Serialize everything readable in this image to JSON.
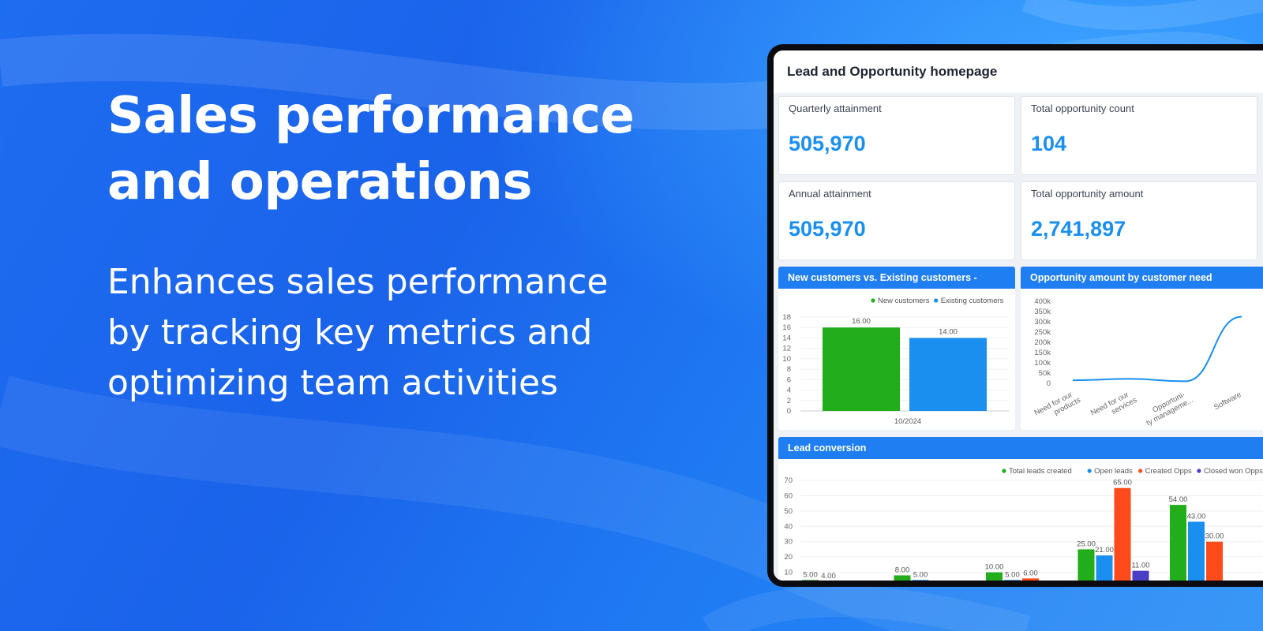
{
  "hero": {
    "title_lines": [
      "Sales performance",
      "and operations"
    ],
    "subtitle_lines": [
      "Enhances sales performance",
      "by tracking key metrics and",
      "optimizing team activities"
    ]
  },
  "dashboard": {
    "title": "Lead and Opportunity homepage",
    "kpis": [
      {
        "label": "Quarterly attainment",
        "value": "505,970"
      },
      {
        "label": "Total opportunity count",
        "value": "104"
      },
      {
        "label": "Annual attainment",
        "value": "505,970"
      },
      {
        "label": "Total opportunity amount",
        "value": "2,741,897"
      }
    ],
    "colors": {
      "accent": "#1a8ff0",
      "panel_header": "#1f7ff2",
      "green": "#22ad1a",
      "blue": "#1a8ff0",
      "red": "#ff4a1c",
      "purple": "#4a3fc4"
    }
  },
  "chart_data": [
    {
      "type": "bar",
      "title": "New customers vs. Existing customers -",
      "categories": [
        "10/2024"
      ],
      "series": [
        {
          "name": "New customers",
          "values": [
            16
          ],
          "color": "#22ad1a"
        },
        {
          "name": "Existing customers",
          "values": [
            14
          ],
          "color": "#1a8ff0"
        }
      ],
      "data_labels": [
        "16.00",
        "14.00"
      ],
      "y_ticks": [
        0,
        2,
        4,
        6,
        8,
        10,
        12,
        14,
        16,
        18
      ],
      "ylim": [
        0,
        18
      ],
      "legend": "top-right",
      "grid": true
    },
    {
      "type": "line",
      "title": "Opportunity amount by customer need",
      "categories": [
        "Need for our products",
        "Need for our services",
        "Opportuni-ty manageme...",
        "Software"
      ],
      "x_tick_lines": [
        [
          "Need for our",
          "products"
        ],
        [
          "Need for our",
          "services"
        ],
        [
          "Opportuni-",
          "ty manageme..."
        ],
        [
          "Software"
        ]
      ],
      "series": [
        {
          "values": [
            15000,
            22000,
            10000,
            325000
          ],
          "color": "#1a8ff0"
        }
      ],
      "y_ticks": [
        "0",
        "50k",
        "100k",
        "150k",
        "200k",
        "250k",
        "300k",
        "350k",
        "400k"
      ],
      "ylim": [
        0,
        400000
      ],
      "grid": false
    },
    {
      "type": "bar",
      "title": "Lead conversion",
      "legend": "top-right",
      "series": [
        {
          "name": "Total leads created",
          "color": "#22ad1a"
        },
        {
          "name": "Open leads",
          "color": "#1a8ff0"
        },
        {
          "name": "Created Opps",
          "color": "#ff4a1c"
        },
        {
          "name": "Closed won Opps",
          "color": "#4a3fc4"
        }
      ],
      "groups": [
        {
          "values": [
            5,
            4,
            0,
            0
          ],
          "labels": [
            "5.00",
            "4.00",
            "",
            ""
          ]
        },
        {
          "values": [
            8,
            5,
            0,
            0
          ],
          "labels": [
            "8.00",
            "5.00",
            "",
            ""
          ]
        },
        {
          "values": [
            10,
            5,
            6,
            0
          ],
          "labels": [
            "10.00",
            "5.00",
            "6.00",
            ""
          ]
        },
        {
          "values": [
            25,
            21,
            65,
            11
          ],
          "labels": [
            "25.00",
            "21.00",
            "65.00",
            "11.00"
          ]
        },
        {
          "values": [
            54,
            43,
            30,
            0
          ],
          "labels": [
            "54.00",
            "43.00",
            "30.00",
            ""
          ]
        }
      ],
      "y_ticks": [
        10,
        20,
        30,
        40,
        50,
        60,
        70
      ],
      "ylim": [
        0,
        70
      ]
    }
  ]
}
